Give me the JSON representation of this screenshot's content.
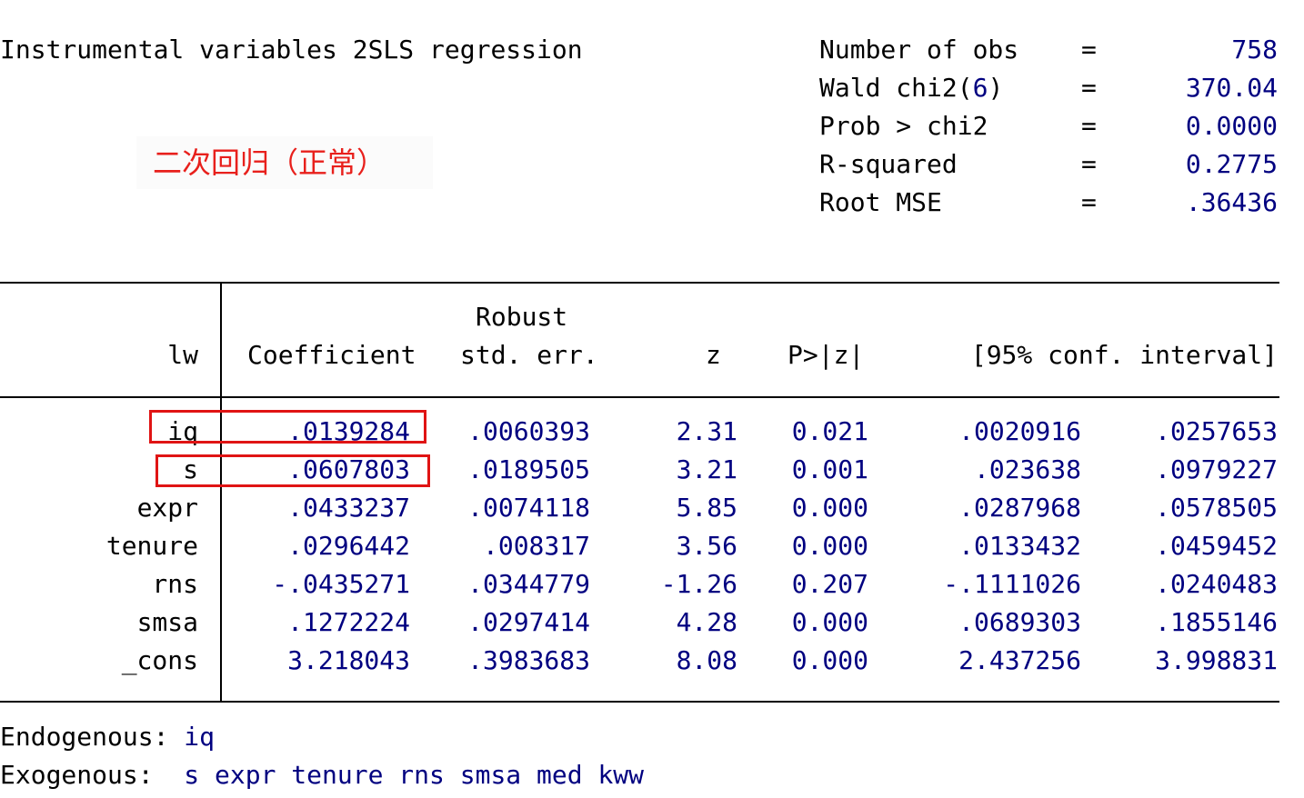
{
  "title": "Instrumental variables 2SLS regression",
  "stats": [
    {
      "label": "Number of obs",
      "eq": "=",
      "value": "758"
    },
    {
      "label_pre": "Wald chi2(",
      "label_num": "6",
      "label_post": ")",
      "eq": "=",
      "value": "370.04"
    },
    {
      "label": "Prob > chi2",
      "eq": "=",
      "value": "0.0000"
    },
    {
      "label": "R-squared",
      "eq": "=",
      "value": "0.2775"
    },
    {
      "label": "Root MSE",
      "eq": "=",
      "value": ".36436"
    }
  ],
  "annotation": "二次回归（正常）",
  "table": {
    "depvar": "lw",
    "headers": {
      "coef": "Coefficient",
      "se_top": "Robust",
      "se": "std. err.",
      "z": "z",
      "p": "P>|z|",
      "ci": "[95% conf. interval]"
    },
    "rows": [
      {
        "var": "iq",
        "coef": ".0139284",
        "se": ".0060393",
        "z": "2.31",
        "p": "0.021",
        "lo": ".0020916",
        "hi": ".0257653"
      },
      {
        "var": "s",
        "coef": ".0607803",
        "se": ".0189505",
        "z": "3.21",
        "p": "0.001",
        "lo": ".023638",
        "hi": ".0979227"
      },
      {
        "var": "expr",
        "coef": ".0433237",
        "se": ".0074118",
        "z": "5.85",
        "p": "0.000",
        "lo": ".0287968",
        "hi": ".0578505"
      },
      {
        "var": "tenure",
        "coef": ".0296442",
        "se": ".008317",
        "z": "3.56",
        "p": "0.000",
        "lo": ".0133432",
        "hi": ".0459452"
      },
      {
        "var": "rns",
        "coef": "-.0435271",
        "se": ".0344779",
        "z": "-1.26",
        "p": "0.207",
        "lo": "-.1111026",
        "hi": ".0240483"
      },
      {
        "var": "smsa",
        "coef": ".1272224",
        "se": ".0297414",
        "z": "4.28",
        "p": "0.000",
        "lo": ".0689303",
        "hi": ".1855146"
      },
      {
        "var": "_cons",
        "coef": "3.218043",
        "se": ".3983683",
        "z": "8.08",
        "p": "0.000",
        "lo": "2.437256",
        "hi": "3.998831"
      }
    ]
  },
  "footer": {
    "endog_label": "Endogenous:",
    "endog_vars": "iq",
    "exog_label": "Exogenous:",
    "exog_vars": "s expr tenure rns smsa med kww"
  },
  "colors": {
    "text": "#000000",
    "values": "#000080",
    "annotation": "#e8201c",
    "highlight_box": "#e01414"
  }
}
